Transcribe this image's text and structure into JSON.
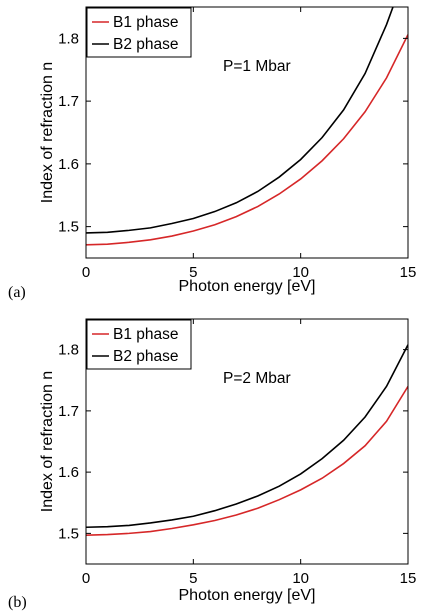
{
  "chart_data": [
    {
      "type": "line",
      "panel_label": "(a)",
      "annotation": "P=1 Mbar",
      "xlabel": "Photon energy [eV]",
      "ylabel": "Index of refraction n",
      "xlim": [
        0,
        15
      ],
      "ylim": [
        1.45,
        1.85
      ],
      "xticks": [
        0,
        5,
        10,
        15
      ],
      "yticks": [
        1.5,
        1.6,
        1.7,
        1.8
      ],
      "ytick_labels": [
        "1.5",
        "1.6",
        "1.7",
        "1.8"
      ],
      "grid": false,
      "legend_position": "top-left",
      "series": [
        {
          "name": "B1 phase",
          "color": "#d62728",
          "x": [
            0,
            1,
            2,
            3,
            4,
            5,
            6,
            7,
            8,
            9,
            10,
            11,
            12,
            13,
            14,
            15
          ],
          "y": [
            1.471,
            1.472,
            1.475,
            1.479,
            1.485,
            1.493,
            1.503,
            1.516,
            1.532,
            1.552,
            1.576,
            1.605,
            1.64,
            1.683,
            1.737,
            1.806
          ]
        },
        {
          "name": "B2 phase",
          "color": "#000000",
          "x": [
            0,
            1,
            2,
            3,
            4,
            5,
            6,
            7,
            8,
            9,
            10,
            11,
            12,
            13,
            14,
            14.3
          ],
          "y": [
            1.49,
            1.491,
            1.494,
            1.498,
            1.505,
            1.513,
            1.524,
            1.538,
            1.556,
            1.579,
            1.607,
            1.642,
            1.686,
            1.744,
            1.822,
            1.85
          ]
        }
      ]
    },
    {
      "type": "line",
      "panel_label": "(b)",
      "annotation": "P=2 Mbar",
      "xlabel": "Photon energy [eV]",
      "ylabel": "Index of refraction n",
      "xlim": [
        0,
        15
      ],
      "ylim": [
        1.45,
        1.85
      ],
      "xticks": [
        0,
        5,
        10,
        15
      ],
      "yticks": [
        1.5,
        1.6,
        1.7,
        1.8
      ],
      "ytick_labels": [
        "1.5",
        "1.6",
        "1.7",
        "1.8"
      ],
      "grid": false,
      "legend_position": "top-left",
      "series": [
        {
          "name": "B1 phase",
          "color": "#d62728",
          "x": [
            0,
            1,
            2,
            3,
            4,
            5,
            6,
            7,
            8,
            9,
            10,
            11,
            12,
            13,
            14,
            15
          ],
          "y": [
            1.497,
            1.498,
            1.5,
            1.503,
            1.508,
            1.514,
            1.521,
            1.53,
            1.541,
            1.555,
            1.571,
            1.59,
            1.614,
            1.643,
            1.683,
            1.74
          ]
        },
        {
          "name": "B2 phase",
          "color": "#000000",
          "x": [
            0,
            1,
            2,
            3,
            4,
            5,
            6,
            7,
            8,
            9,
            10,
            11,
            12,
            13,
            14,
            15
          ],
          "y": [
            1.51,
            1.511,
            1.513,
            1.517,
            1.522,
            1.528,
            1.537,
            1.548,
            1.561,
            1.577,
            1.597,
            1.622,
            1.652,
            1.69,
            1.74,
            1.808
          ]
        }
      ]
    }
  ]
}
